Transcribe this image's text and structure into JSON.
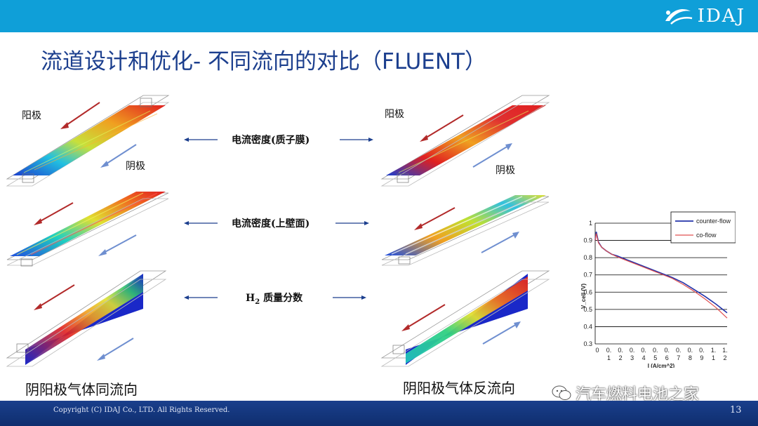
{
  "header": {
    "logo_text": "IDAJ",
    "logo_icon": "swoosh-icon"
  },
  "title": "流道设计和优化- 不同流向的对比（FLUENT）",
  "left_panel": {
    "anode_label": "阳极",
    "cathode_label": "阴极",
    "caption": "阴阳极气体同流向"
  },
  "right_panel": {
    "anode_label": "阳极",
    "cathode_label": "阴极",
    "caption": "阴阳极气体反流向"
  },
  "middle": {
    "row1": "电流密度(质子膜)",
    "row2": "电流密度(上壁面)",
    "row3_prefix": "H",
    "row3_sub": "2",
    "row3_suffix": " 质量分数"
  },
  "colors": {
    "header_bar": "#0f9fd8",
    "title": "#1c3f8e",
    "footer": "#1a3f8c",
    "anode_arrow": "#b22a2a",
    "cathode_arrow": "#6f8fd0",
    "counter_flow": "#2233aa",
    "co_flow": "#e05050"
  },
  "chart_data": {
    "type": "line",
    "xlabel": "I (A/cm^2)",
    "ylabel": "V_cell (V)",
    "ylim": [
      0.3,
      1.0
    ],
    "yticks": [
      "1",
      "0.9",
      "0.8",
      "0.7",
      "0.6",
      "0.5",
      "0.4",
      "0.3"
    ],
    "xticks_top": [
      "0",
      "0.",
      "0.",
      "0.",
      "0.",
      "0.",
      "0.",
      "0.",
      "0.",
      "0.",
      "1.",
      "1."
    ],
    "xticks_bottom": [
      "",
      "1",
      "2",
      "3",
      "4",
      "5",
      "6",
      "7",
      "8",
      "9",
      "1",
      "2"
    ],
    "xlim": [
      0,
      1.2
    ],
    "legend_position": "top-right",
    "grid": "horizontal",
    "series": [
      {
        "name": "counter-flow",
        "color": "#2233aa",
        "x": [
          0,
          0.01,
          0.03,
          0.06,
          0.1,
          0.15,
          0.2,
          0.3,
          0.4,
          0.5,
          0.6,
          0.7,
          0.8,
          0.9,
          1.0,
          1.1,
          1.2
        ],
        "y": [
          0.9,
          0.95,
          0.89,
          0.86,
          0.84,
          0.82,
          0.81,
          0.785,
          0.76,
          0.735,
          0.71,
          0.685,
          0.655,
          0.615,
          0.575,
          0.53,
          0.48
        ]
      },
      {
        "name": "co-flow",
        "color": "#e05050",
        "x": [
          0,
          0.01,
          0.03,
          0.06,
          0.1,
          0.15,
          0.2,
          0.3,
          0.4,
          0.5,
          0.6,
          0.7,
          0.8,
          0.9,
          1.0,
          1.1,
          1.2
        ],
        "y": [
          0.9,
          0.94,
          0.885,
          0.86,
          0.84,
          0.82,
          0.805,
          0.78,
          0.755,
          0.73,
          0.705,
          0.68,
          0.645,
          0.605,
          0.56,
          0.51,
          0.45
        ]
      }
    ]
  },
  "footer": {
    "copyright": "Copyright (C)  IDAJ Co., LTD. All Rights Reserved.",
    "page_number": "13"
  },
  "watermark": {
    "text": "汽车燃料电池之家",
    "icon": "wechat-icon"
  }
}
